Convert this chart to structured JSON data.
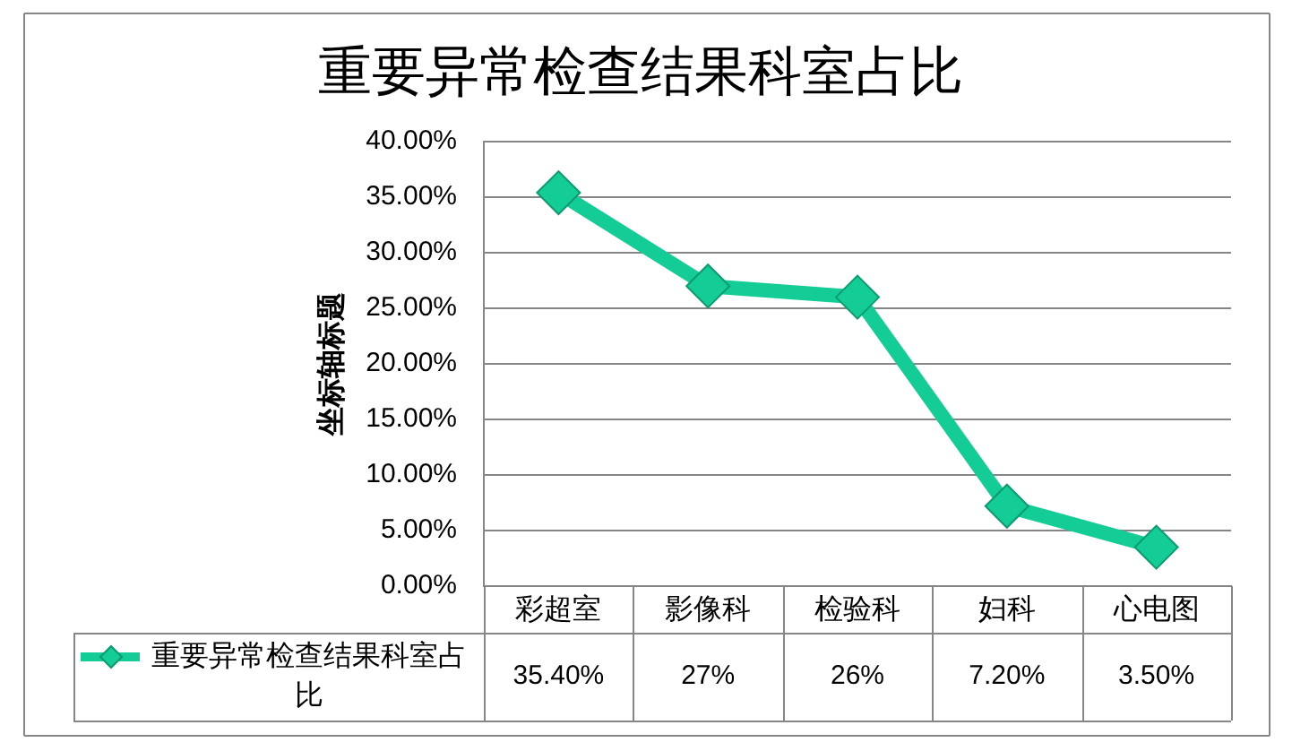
{
  "chart_data": {
    "type": "line",
    "title": "重要异常检查结果科室占比",
    "ylabel": "坐标轴标题",
    "categories": [
      "彩超室",
      "影像科",
      "检验科",
      "妇科",
      "心电图"
    ],
    "series": [
      {
        "name": "重要异常检查结果科室占比",
        "color": "#14cc96",
        "values": [
          35.4,
          27,
          26,
          7.2,
          3.5
        ],
        "value_labels": [
          "35.40%",
          "27%",
          "26%",
          "7.20%",
          "3.50%"
        ]
      }
    ],
    "ylim": [
      0,
      40
    ],
    "yticks": [
      {
        "value": 0,
        "label": "0.00%"
      },
      {
        "value": 5,
        "label": "5.00%"
      },
      {
        "value": 10,
        "label": "10.00%"
      },
      {
        "value": 15,
        "label": "15.00%"
      },
      {
        "value": 20,
        "label": "20.00%"
      },
      {
        "value": 25,
        "label": "25.00%"
      },
      {
        "value": 30,
        "label": "30.00%"
      },
      {
        "value": 35,
        "label": "35.00%"
      },
      {
        "value": 40,
        "label": "40.00%"
      }
    ],
    "grid": "y",
    "legend": "bottom",
    "marker": "diamond",
    "line_style": "solid"
  }
}
